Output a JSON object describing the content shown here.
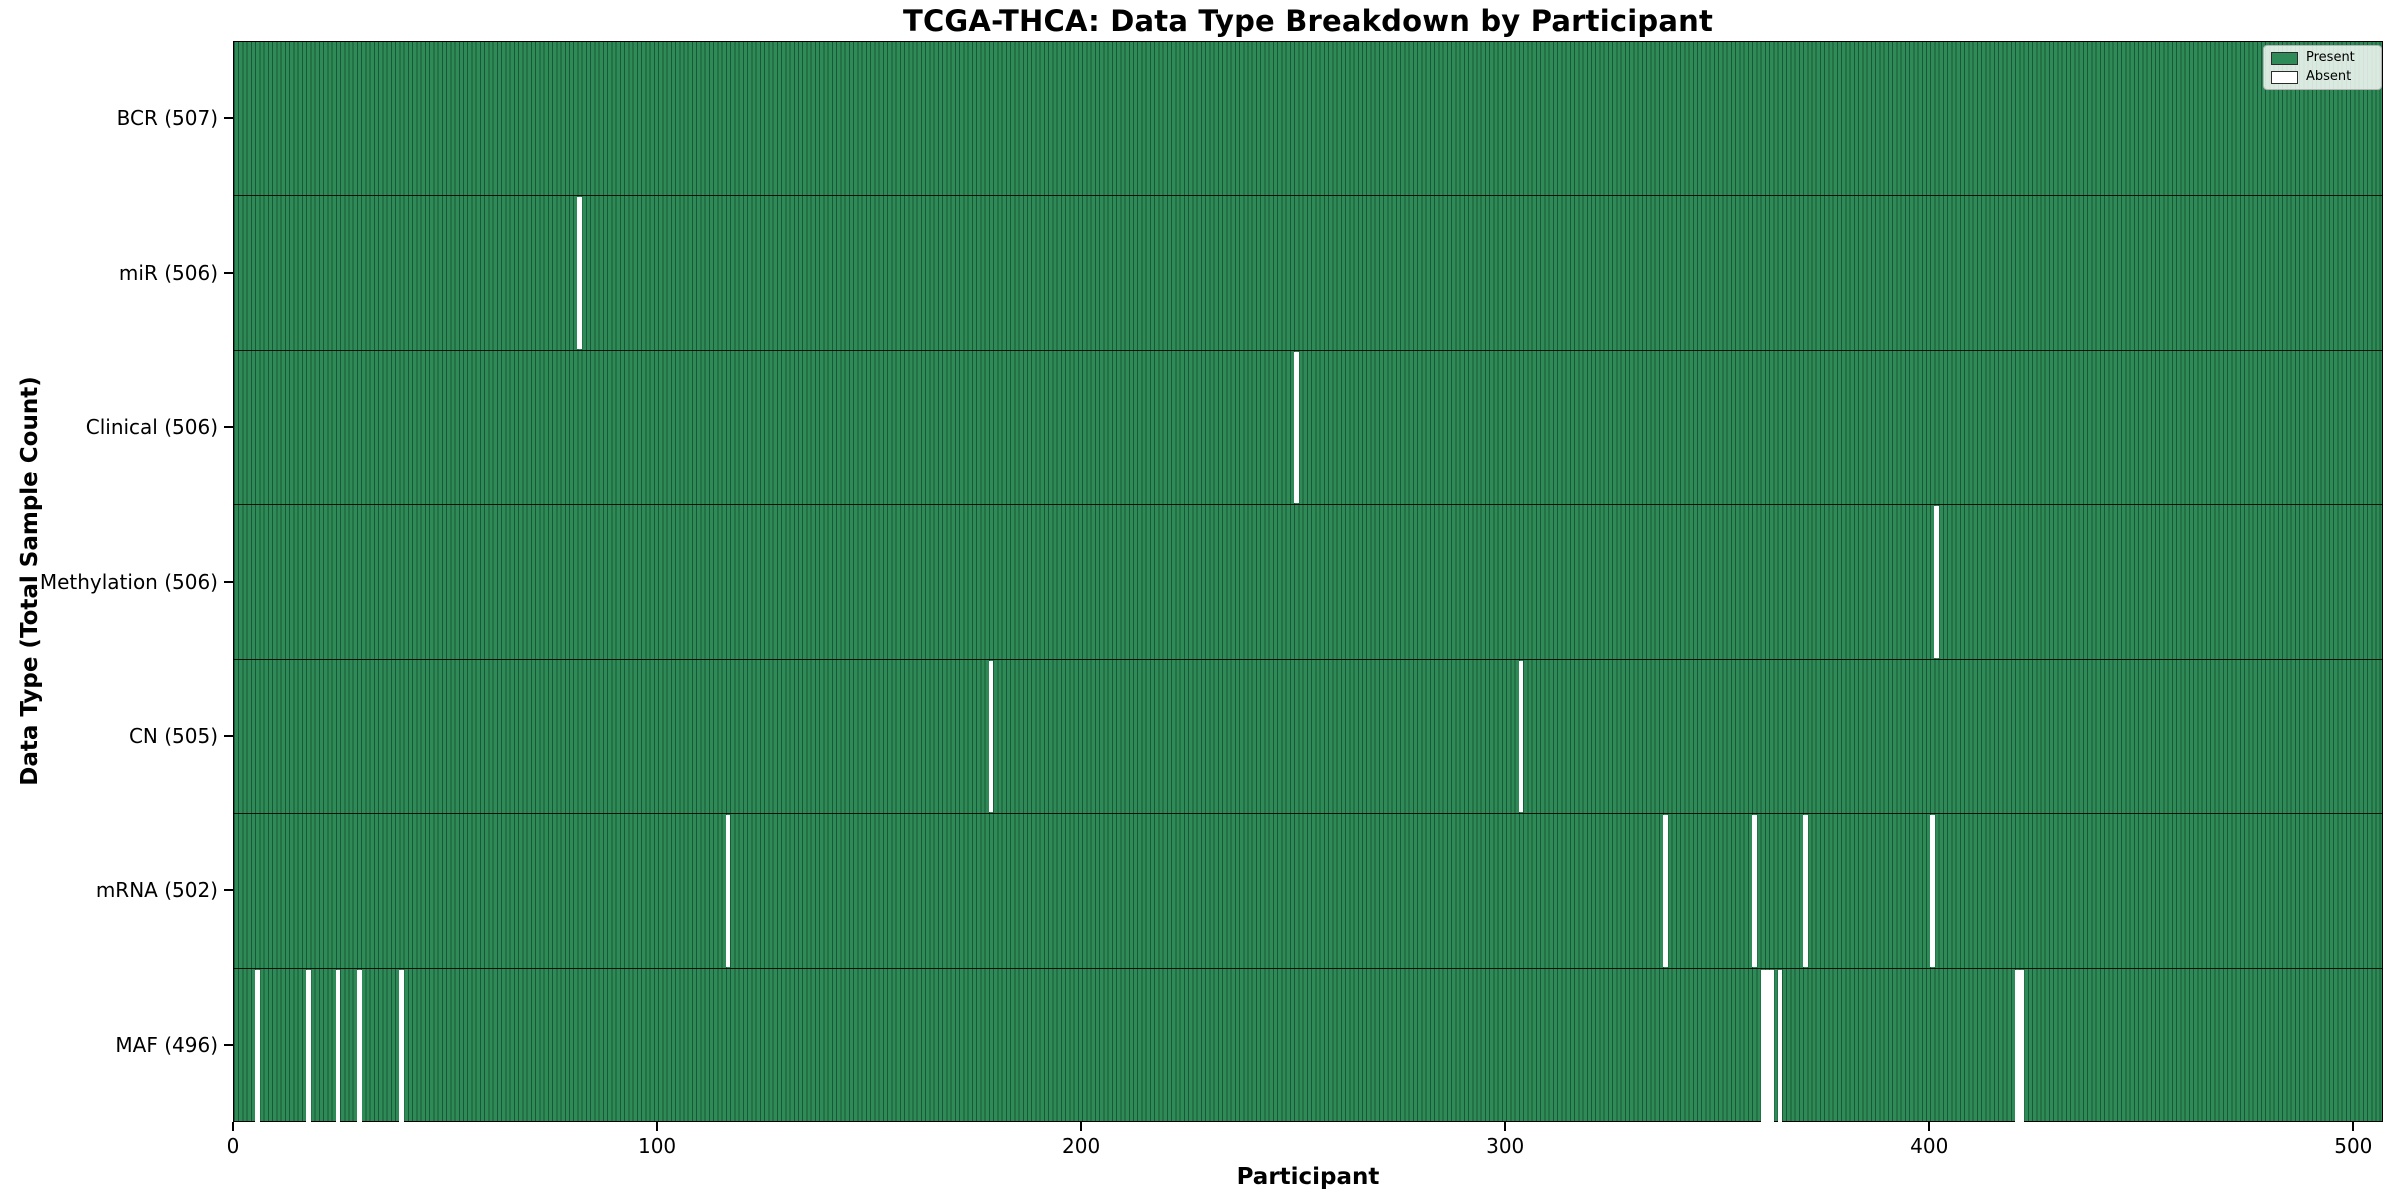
{
  "chart_data": {
    "type": "heatmap",
    "title": "TCGA-THCA: Data Type Breakdown by Participant",
    "xlabel": "Participant",
    "ylabel": "Data Type (Total Sample Count)",
    "total_participants": 507,
    "x_ticks": [
      0,
      100,
      200,
      300,
      400,
      500
    ],
    "legend": [
      {
        "label": "Present",
        "color": "#2e8b57"
      },
      {
        "label": "Absent",
        "color": "#ffffff"
      }
    ],
    "legend_position": "upper right",
    "colors": {
      "present": "#2e8b57",
      "absent": "#ffffff",
      "bar_edge": "#0d3a22",
      "row_divider": "#000000"
    },
    "rows": [
      {
        "label": "BCR (507)",
        "name": "bcr",
        "present_count": 507,
        "absent_participants": []
      },
      {
        "label": "miR (506)",
        "name": "mir",
        "present_count": 506,
        "absent_participants": [
          81
        ]
      },
      {
        "label": "Clinical (506)",
        "name": "clinical",
        "present_count": 506,
        "absent_participants": [
          250
        ]
      },
      {
        "label": "Methylation (506)",
        "name": "methylation",
        "present_count": 506,
        "absent_participants": [
          401
        ]
      },
      {
        "label": "CN (505)",
        "name": "cn",
        "present_count": 505,
        "absent_participants": [
          178,
          303
        ]
      },
      {
        "label": "mRNA (502)",
        "name": "mrna",
        "present_count": 502,
        "absent_participants": [
          116,
          337,
          358,
          370,
          400
        ]
      },
      {
        "label": "MAF (496)",
        "name": "maf",
        "present_count": 496,
        "absent_participants": [
          5,
          17,
          24,
          29,
          39,
          360,
          361,
          362,
          364,
          420,
          421
        ]
      }
    ]
  }
}
